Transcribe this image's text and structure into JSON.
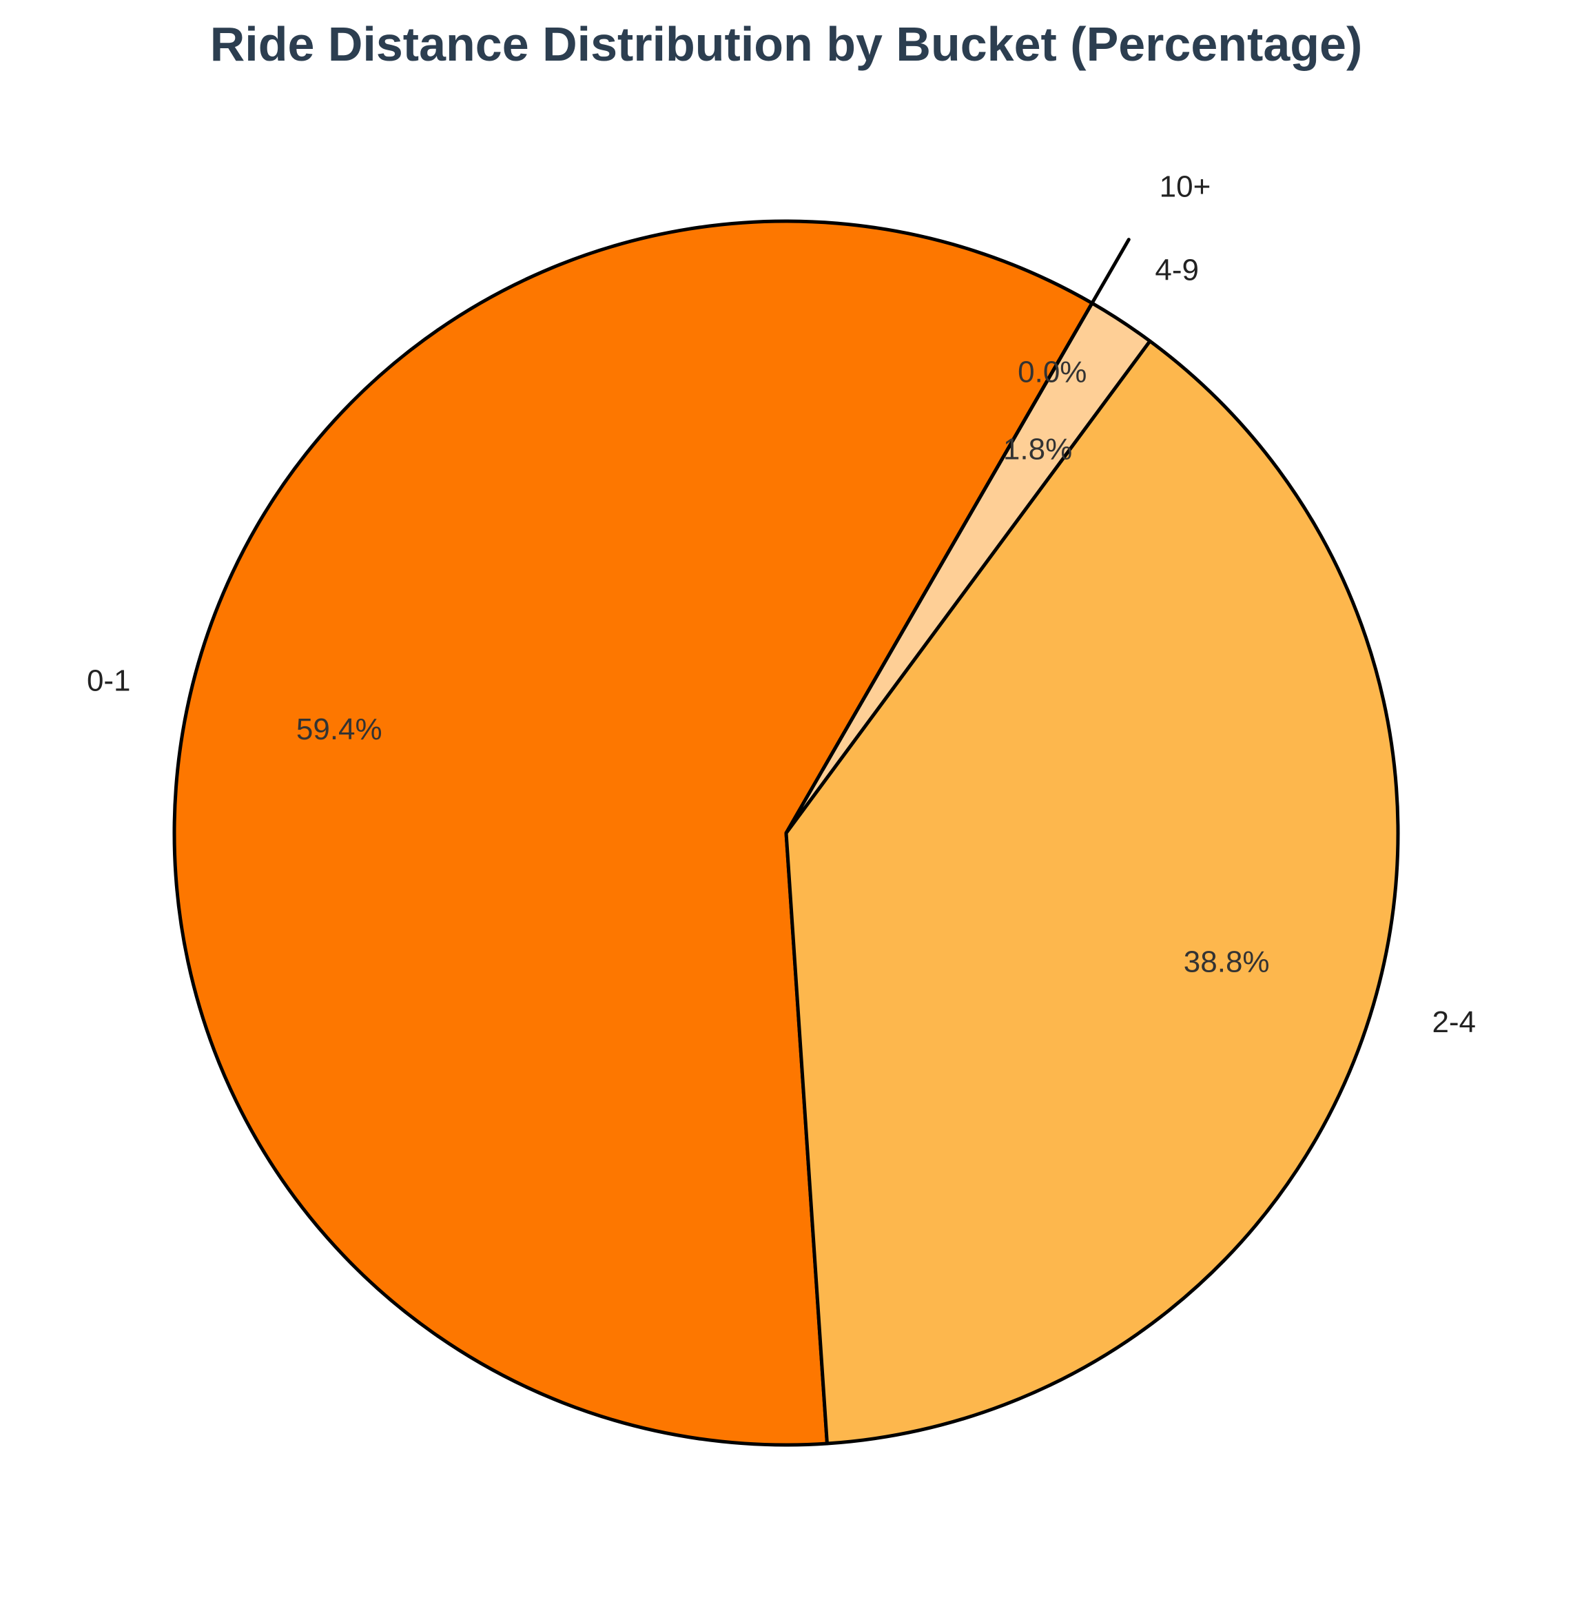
{
  "chart_data": {
    "type": "pie",
    "title": "Ride Distance Distribution by Bucket (Percentage)",
    "categories": [
      "0-1",
      "2-4",
      "4-9",
      "10+"
    ],
    "values": [
      59.4,
      38.8,
      1.8,
      0.0
    ],
    "value_labels": [
      "59.4%",
      "38.8%",
      "1.8%",
      "0.0%"
    ],
    "exploded": [
      false,
      false,
      false,
      true
    ],
    "start_angle_deg": 60,
    "direction": "counterclockwise",
    "colors": [
      "#fd7700",
      "#fdb74d",
      "#fecf96",
      "#fecf96"
    ],
    "edge_color": "#000000",
    "legend": "none"
  }
}
